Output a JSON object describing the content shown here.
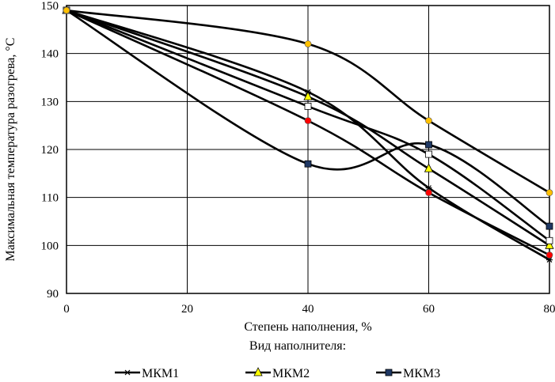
{
  "chart_data": {
    "type": "line",
    "xlabel": "Степень наполнения, %",
    "ylabel": "Максимальная температура разогрева, °С",
    "legend_title": "Вид наполнителя:",
    "legend_placement": "bottom",
    "grid": true,
    "smoothed": true,
    "xlim": [
      0,
      80
    ],
    "ylim": [
      90,
      150
    ],
    "xticks": [
      0,
      20,
      40,
      60,
      80
    ],
    "yticks": [
      90,
      100,
      110,
      120,
      130,
      140,
      150
    ],
    "x": [
      0,
      40,
      60,
      80
    ],
    "series": [
      {
        "name": "МКМ1",
        "marker": "asterisk",
        "color": "#000000",
        "values": [
          149,
          132,
          112,
          97
        ]
      },
      {
        "name": "МКМ2",
        "marker": "triangle",
        "color": "#ffff00",
        "values": [
          149,
          131,
          116,
          100
        ]
      },
      {
        "name": "МКМ3",
        "marker": "square",
        "color": "#1f3864",
        "values": [
          149,
          117,
          121,
          104
        ]
      },
      {
        "marker": "square",
        "color": "#ffffff",
        "values": [
          149,
          129,
          119,
          101
        ]
      },
      {
        "marker": "circle",
        "color": "#ff0000",
        "values": [
          149,
          126,
          111,
          98
        ]
      },
      {
        "marker": "circle",
        "color": "#ffc000",
        "values": [
          149,
          142,
          126,
          111
        ]
      }
    ]
  }
}
